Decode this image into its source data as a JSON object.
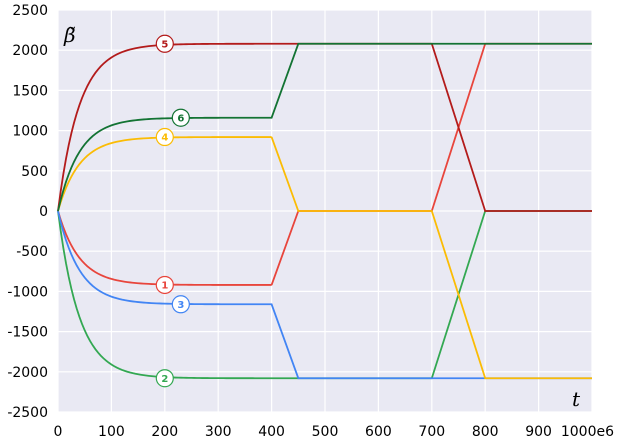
{
  "chart_data": {
    "type": "line",
    "title": "",
    "xlabel": "t",
    "ylabel": "β̃",
    "xlim": [
      0,
      1000
    ],
    "ylim": [
      -2500,
      2500
    ],
    "x_ticks": [
      "0",
      "100",
      "200",
      "300",
      "400",
      "500",
      "600",
      "700",
      "800",
      "900",
      "1000e6"
    ],
    "y_ticks": [
      "2500",
      "2000",
      "1500",
      "1000",
      "500",
      "0",
      "-500",
      "-1000",
      "-1500",
      "-2000",
      "-2500"
    ],
    "grid": true,
    "background_color": "#e9e9f3",
    "series": [
      {
        "label": "1",
        "color": "#e8453c",
        "x": [
          0,
          400,
          450,
          700,
          800,
          1000
        ],
        "y": [
          0,
          -920,
          0,
          0,
          2080,
          2080
        ],
        "saturation_value": -920,
        "label_at": [
          200,
          -920
        ]
      },
      {
        "label": "2",
        "color": "#33a852",
        "x": [
          0,
          400,
          450,
          700,
          800,
          1000
        ],
        "y": [
          0,
          -2080,
          -2080,
          -2080,
          0,
          0
        ],
        "saturation_value": -2080,
        "label_at": [
          200,
          -2080
        ]
      },
      {
        "label": "3",
        "color": "#4285f4",
        "x": [
          0,
          400,
          450,
          700,
          800,
          1000
        ],
        "y": [
          0,
          -1160,
          -2080,
          -2080,
          -2080,
          -2080
        ],
        "saturation_value": -1160,
        "label_at": [
          230,
          -1160
        ]
      },
      {
        "label": "4",
        "color": "#fbbc04",
        "x": [
          0,
          400,
          450,
          700,
          800,
          1000
        ],
        "y": [
          0,
          920,
          0,
          0,
          -2080,
          -2080
        ],
        "saturation_value": 920,
        "label_at": [
          200,
          920
        ]
      },
      {
        "label": "5",
        "color": "#b31b1b",
        "x": [
          0,
          400,
          450,
          700,
          800,
          1000
        ],
        "y": [
          0,
          2080,
          2080,
          2080,
          0,
          0
        ],
        "saturation_value": 2080,
        "label_at": [
          200,
          2080
        ]
      },
      {
        "label": "6",
        "color": "#137333",
        "x": [
          0,
          400,
          450,
          700,
          800,
          1000
        ],
        "y": [
          0,
          1160,
          2080,
          2080,
          2080,
          2080
        ],
        "saturation_value": 1160,
        "label_at": [
          230,
          1160
        ]
      }
    ]
  }
}
